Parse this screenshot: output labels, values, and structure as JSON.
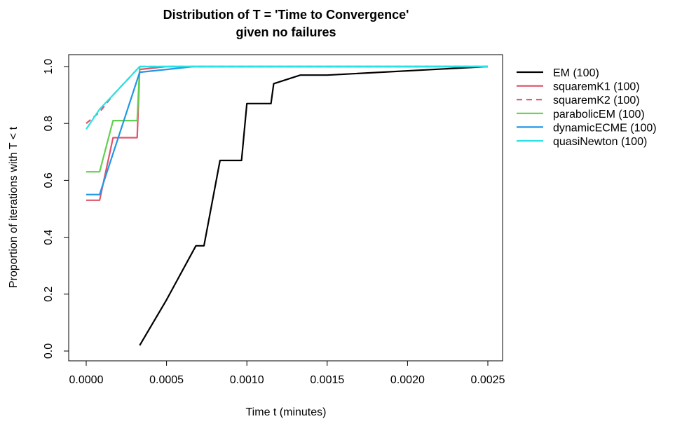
{
  "chart_data": {
    "type": "line",
    "title_line1": "Distribution of T = 'Time to Convergence'",
    "title_line2": "given no failures",
    "xlabel": "Time t (minutes)",
    "ylabel": "Proportion of iterations with T < t",
    "xlim": [
      0,
      0.0025
    ],
    "ylim": [
      0,
      1
    ],
    "x_ticks": [
      "0.0000",
      "0.0005",
      "0.0010",
      "0.0015",
      "0.0020",
      "0.0025"
    ],
    "y_ticks": [
      "0.0",
      "0.2",
      "0.4",
      "0.6",
      "0.8",
      "1.0"
    ],
    "grid": false,
    "legend_position": "right",
    "series": [
      {
        "name": "EM (100)",
        "color": "#000000",
        "dash": "solid",
        "x": [
          0.000333,
          0.0005,
          0.000683,
          0.000733,
          0.000833,
          0.000967,
          0.001,
          0.00115,
          0.001167,
          0.001333,
          0.0015,
          0.0025
        ],
        "y": [
          0.02,
          0.18,
          0.37,
          0.37,
          0.67,
          0.67,
          0.87,
          0.87,
          0.94,
          0.97,
          0.97,
          1.0
        ]
      },
      {
        "name": "squaremK1 (100)",
        "color": "#DF536B",
        "dash": "solid",
        "x": [
          0.0,
          8.33e-05,
          0.000167,
          0.000167,
          0.000317,
          0.000333,
          0.0005,
          0.0025
        ],
        "y": [
          0.53,
          0.53,
          0.75,
          0.75,
          0.75,
          0.99,
          1.0,
          1.0
        ]
      },
      {
        "name": "squaremK2 (100)",
        "color": "#DF536B",
        "dash": "dashed",
        "x": [
          0.0,
          8.33e-05,
          0.000167,
          0.000333,
          0.0005,
          0.0025
        ],
        "y": [
          0.8,
          0.84,
          0.9,
          1.0,
          1.0,
          1.0
        ]
      },
      {
        "name": "parabolicEM (100)",
        "color": "#61D04F",
        "dash": "solid",
        "x": [
          0.0,
          8.33e-05,
          0.000167,
          0.000317,
          0.000333,
          0.0025
        ],
        "y": [
          0.63,
          0.63,
          0.81,
          0.81,
          1.0,
          1.0
        ]
      },
      {
        "name": "dynamicECME (100)",
        "color": "#2297E6",
        "dash": "solid",
        "x": [
          0.0,
          8.33e-05,
          0.000333,
          0.0005,
          0.000667,
          0.0025
        ],
        "y": [
          0.55,
          0.55,
          0.98,
          0.99,
          1.0,
          1.0
        ]
      },
      {
        "name": "quasiNewton (100)",
        "color": "#28E2E5",
        "dash": "solid",
        "x": [
          0.0,
          8.33e-05,
          0.000167,
          0.000333,
          0.0025
        ],
        "y": [
          0.78,
          0.85,
          0.9,
          1.0,
          1.0
        ]
      }
    ]
  }
}
